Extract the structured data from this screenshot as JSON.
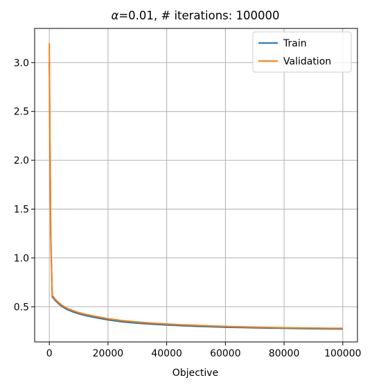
{
  "chart_data": {
    "type": "line",
    "title_symbol": "α",
    "title_rest": "=0.01, # iterations: 100000",
    "xlabel": "Objective",
    "ylabel": "",
    "xlim": [
      -5000,
      105000
    ],
    "ylim": [
      0.14,
      3.35
    ],
    "x_ticks": [
      0,
      20000,
      40000,
      60000,
      80000,
      100000
    ],
    "x_tick_labels": [
      "0",
      "20000",
      "40000",
      "60000",
      "80000",
      "100000"
    ],
    "y_ticks": [
      0.5,
      1.0,
      1.5,
      2.0,
      2.5,
      3.0
    ],
    "y_tick_labels": [
      "0.5",
      "1.0",
      "1.5",
      "2.0",
      "2.5",
      "3.0"
    ],
    "grid": true,
    "legend_position": "top-right",
    "x": [
      0,
      200,
      500,
      1000,
      1500,
      2000,
      3000,
      4000,
      5000,
      6000,
      8000,
      10000,
      12000,
      15000,
      20000,
      25000,
      30000,
      35000,
      40000,
      45000,
      50000,
      55000,
      60000,
      65000,
      70000,
      75000,
      80000,
      85000,
      90000,
      95000,
      100000
    ],
    "series": [
      {
        "name": "Train",
        "color": "#1f77b4",
        "values": [
          3.0,
          2.2,
          1.2,
          0.6,
          0.585,
          0.565,
          0.535,
          0.51,
          0.49,
          0.473,
          0.448,
          0.428,
          0.412,
          0.393,
          0.365,
          0.345,
          0.332,
          0.322,
          0.313,
          0.306,
          0.3,
          0.295,
          0.29,
          0.287,
          0.284,
          0.281,
          0.279,
          0.277,
          0.275,
          0.273,
          0.272
        ]
      },
      {
        "name": "Validation",
        "color": "#ff7f0e",
        "values": [
          3.2,
          2.3,
          1.25,
          0.615,
          0.598,
          0.578,
          0.548,
          0.523,
          0.503,
          0.486,
          0.461,
          0.441,
          0.425,
          0.406,
          0.378,
          0.358,
          0.344,
          0.333,
          0.324,
          0.316,
          0.31,
          0.304,
          0.299,
          0.295,
          0.292,
          0.289,
          0.286,
          0.284,
          0.282,
          0.28,
          0.279
        ]
      }
    ]
  }
}
